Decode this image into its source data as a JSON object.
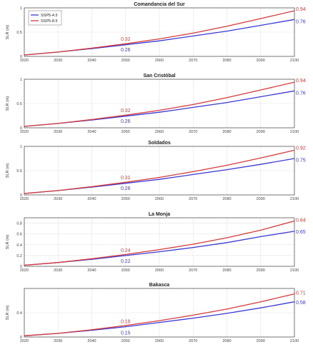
{
  "chart_data": [
    {
      "type": "line",
      "title": "Comandancia del Sur",
      "ylabel": "SLR (m)",
      "x": [
        2020,
        2030,
        2040,
        2050,
        2060,
        2070,
        2080,
        2090,
        2100
      ],
      "xlim": [
        2020,
        2100
      ],
      "ylim": [
        0,
        1
      ],
      "yticks": [
        0,
        0.5,
        1
      ],
      "grid": true,
      "legend": "top-left",
      "series": [
        {
          "name": "SSP5-4.5",
          "color": "#3a3ad6",
          "values": [
            0.03,
            0.09,
            0.16,
            0.24,
            0.32,
            0.42,
            0.52,
            0.64,
            0.76
          ]
        },
        {
          "name": "SSP5-8.5",
          "color": "#d63a3a",
          "values": [
            0.03,
            0.09,
            0.17,
            0.26,
            0.36,
            0.48,
            0.62,
            0.78,
            0.94
          ]
        }
      ],
      "annotations": [
        {
          "text": "0.32",
          "x": 2050,
          "y": 0.36,
          "series": 1
        },
        {
          "text": "0.26",
          "x": 2050,
          "y": 0.14,
          "series": 0
        },
        {
          "text": "0.94",
          "x": 2100,
          "y": 0.98,
          "series": 1
        },
        {
          "text": "0.76",
          "x": 2100,
          "y": 0.72,
          "series": 0
        }
      ]
    },
    {
      "type": "line",
      "title": "San Cristóbal",
      "ylabel": "SLR (m)",
      "x": [
        2020,
        2030,
        2040,
        2050,
        2060,
        2070,
        2080,
        2090,
        2100
      ],
      "xlim": [
        2020,
        2100
      ],
      "ylim": [
        0,
        1
      ],
      "yticks": [
        0,
        0.5,
        1
      ],
      "grid": true,
      "series": [
        {
          "name": "SSP5-4.5",
          "color": "#3a3ad6",
          "values": [
            0.03,
            0.09,
            0.16,
            0.24,
            0.32,
            0.42,
            0.52,
            0.64,
            0.76
          ]
        },
        {
          "name": "SSP5-8.5",
          "color": "#d63a3a",
          "values": [
            0.03,
            0.09,
            0.17,
            0.26,
            0.36,
            0.48,
            0.62,
            0.78,
            0.94
          ]
        }
      ],
      "annotations": [
        {
          "text": "0.32",
          "x": 2050,
          "y": 0.36,
          "series": 1
        },
        {
          "text": "0.26",
          "x": 2050,
          "y": 0.14,
          "series": 0
        },
        {
          "text": "0.94",
          "x": 2100,
          "y": 0.98,
          "series": 1
        },
        {
          "text": "0.76",
          "x": 2100,
          "y": 0.72,
          "series": 0
        }
      ]
    },
    {
      "type": "line",
      "title": "Soldados",
      "ylabel": "SLR (m)",
      "x": [
        2020,
        2030,
        2040,
        2050,
        2060,
        2070,
        2080,
        2090,
        2100
      ],
      "xlim": [
        2020,
        2100
      ],
      "ylim": [
        0,
        1
      ],
      "yticks": [
        0,
        0.5,
        1
      ],
      "grid": true,
      "series": [
        {
          "name": "SSP5-4.5",
          "color": "#3a3ad6",
          "values": [
            0.03,
            0.09,
            0.16,
            0.24,
            0.32,
            0.42,
            0.52,
            0.63,
            0.75
          ]
        },
        {
          "name": "SSP5-8.5",
          "color": "#d63a3a",
          "values": [
            0.03,
            0.09,
            0.17,
            0.26,
            0.36,
            0.48,
            0.61,
            0.76,
            0.92
          ]
        }
      ],
      "annotations": [
        {
          "text": "0.31",
          "x": 2050,
          "y": 0.36,
          "series": 1
        },
        {
          "text": "0.26",
          "x": 2050,
          "y": 0.14,
          "series": 0
        },
        {
          "text": "0.92",
          "x": 2100,
          "y": 0.97,
          "series": 1
        },
        {
          "text": "0.75",
          "x": 2100,
          "y": 0.72,
          "series": 0
        }
      ]
    },
    {
      "type": "line",
      "title": "La Monja",
      "ylabel": "SLR (m)",
      "x": [
        2020,
        2030,
        2040,
        2050,
        2060,
        2070,
        2080,
        2090,
        2100
      ],
      "xlim": [
        2020,
        2100
      ],
      "ylim": [
        0,
        0.9
      ],
      "yticks": [
        0,
        0.2,
        0.4,
        0.6,
        0.8
      ],
      "grid": true,
      "series": [
        {
          "name": "SSP5-4.5",
          "color": "#3a3ad6",
          "values": [
            0.02,
            0.07,
            0.13,
            0.2,
            0.27,
            0.35,
            0.44,
            0.55,
            0.65
          ]
        },
        {
          "name": "SSP5-8.5",
          "color": "#d63a3a",
          "values": [
            0.02,
            0.07,
            0.14,
            0.22,
            0.31,
            0.41,
            0.53,
            0.67,
            0.84
          ]
        }
      ],
      "annotations": [
        {
          "text": "0.24",
          "x": 2050,
          "y": 0.3,
          "series": 1
        },
        {
          "text": "0.22",
          "x": 2050,
          "y": 0.1,
          "series": 0
        },
        {
          "text": "0.84",
          "x": 2100,
          "y": 0.86,
          "series": 1
        },
        {
          "text": "0.65",
          "x": 2100,
          "y": 0.64,
          "series": 0
        }
      ]
    },
    {
      "type": "line",
      "title": "Bakasca",
      "ylabel": "SLR (m)",
      "x": [
        2020,
        2030,
        2040,
        2050,
        2060,
        2070,
        2080,
        2090,
        2100
      ],
      "xlim": [
        2020,
        2100
      ],
      "ylim": [
        0,
        0.8
      ],
      "yticks": [
        0,
        0.4
      ],
      "grid": true,
      "series": [
        {
          "name": "SSP5-4.5",
          "color": "#3a3ad6",
          "values": [
            0.02,
            0.06,
            0.11,
            0.17,
            0.24,
            0.31,
            0.39,
            0.48,
            0.58
          ]
        },
        {
          "name": "SSP5-8.5",
          "color": "#d63a3a",
          "values": [
            0.02,
            0.06,
            0.12,
            0.19,
            0.27,
            0.36,
            0.46,
            0.58,
            0.71
          ]
        }
      ],
      "annotations": [
        {
          "text": "0.18",
          "x": 2050,
          "y": 0.26,
          "series": 1
        },
        {
          "text": "0.15",
          "x": 2050,
          "y": 0.07,
          "series": 0
        },
        {
          "text": "0.71",
          "x": 2100,
          "y": 0.73,
          "series": 1
        },
        {
          "text": "0.58",
          "x": 2100,
          "y": 0.57,
          "series": 0
        }
      ]
    }
  ]
}
